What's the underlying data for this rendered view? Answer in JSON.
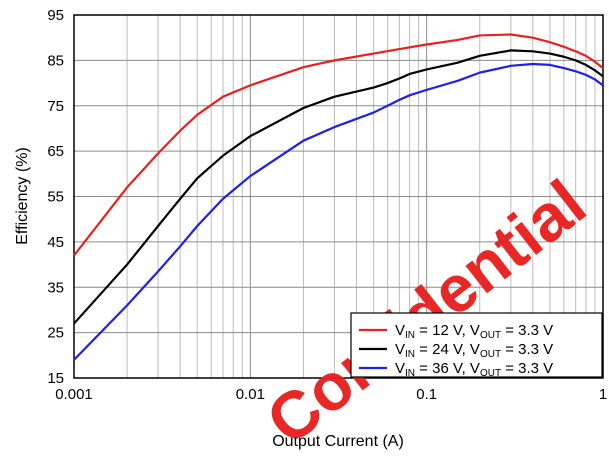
{
  "chart_data": {
    "type": "line",
    "xlabel": "Output Current (A)",
    "ylabel": "Efficiency (%)",
    "x_scale": "log",
    "xlim": [
      0.001,
      1
    ],
    "ylim": [
      15,
      95
    ],
    "x_ticks": [
      {
        "value": 0.001,
        "label": "0.001"
      },
      {
        "value": 0.01,
        "label": "0.01"
      },
      {
        "value": 0.1,
        "label": "0.1"
      },
      {
        "value": 1,
        "label": "1"
      }
    ],
    "y_ticks": [
      {
        "value": 15,
        "label": "15"
      },
      {
        "value": 25,
        "label": "25"
      },
      {
        "value": 35,
        "label": "35"
      },
      {
        "value": 45,
        "label": "45"
      },
      {
        "value": 55,
        "label": "55"
      },
      {
        "value": 65,
        "label": "65"
      },
      {
        "value": 75,
        "label": "75"
      },
      {
        "value": 85,
        "label": "85"
      },
      {
        "value": 95,
        "label": "95"
      }
    ],
    "grid": true,
    "legend_position": "bottom-right",
    "series": [
      {
        "name": "VIN = 12 V, VOUT = 3.3 V",
        "legend": {
          "p1": "V",
          "s1": "IN",
          "p2": " = 12 V, V",
          "s2": "OUT",
          "p3": " = 3.3 V"
        },
        "color": "#e8201f",
        "points": [
          [
            0.001,
            42
          ],
          [
            0.002,
            57
          ],
          [
            0.003,
            64.5
          ],
          [
            0.004,
            69.5
          ],
          [
            0.005,
            73
          ],
          [
            0.007,
            77
          ],
          [
            0.01,
            79.5
          ],
          [
            0.02,
            83.5
          ],
          [
            0.03,
            85
          ],
          [
            0.05,
            86.5
          ],
          [
            0.07,
            87.5
          ],
          [
            0.1,
            88.5
          ],
          [
            0.15,
            89.5
          ],
          [
            0.2,
            90.5
          ],
          [
            0.3,
            90.7
          ],
          [
            0.4,
            90
          ],
          [
            0.5,
            89
          ],
          [
            0.6,
            88
          ],
          [
            0.7,
            87
          ],
          [
            0.8,
            86
          ],
          [
            0.9,
            84.7
          ],
          [
            1,
            83.3
          ]
        ]
      },
      {
        "name": "VIN = 24 V, VOUT = 3.3 V",
        "legend": {
          "p1": "V",
          "s1": "IN",
          "p2": " = 24 V, V",
          "s2": "OUT",
          "p3": " = 3.3 V"
        },
        "color": "#000000",
        "points": [
          [
            0.001,
            27
          ],
          [
            0.002,
            40
          ],
          [
            0.003,
            48.5
          ],
          [
            0.004,
            54.5
          ],
          [
            0.005,
            59
          ],
          [
            0.007,
            64
          ],
          [
            0.01,
            68.3
          ],
          [
            0.02,
            74.5
          ],
          [
            0.03,
            77
          ],
          [
            0.05,
            79
          ],
          [
            0.06,
            80
          ],
          [
            0.07,
            81
          ],
          [
            0.08,
            82
          ],
          [
            0.1,
            83
          ],
          [
            0.15,
            84.5
          ],
          [
            0.2,
            86
          ],
          [
            0.3,
            87.2
          ],
          [
            0.4,
            87
          ],
          [
            0.5,
            86.5
          ],
          [
            0.6,
            85.8
          ],
          [
            0.7,
            85
          ],
          [
            0.8,
            84
          ],
          [
            0.9,
            82.8
          ],
          [
            1,
            81.5
          ]
        ]
      },
      {
        "name": "VIN = 36 V, VOUT = 3.3 V",
        "legend": {
          "p1": "V",
          "s1": "IN",
          "p2": " = 36 V, V",
          "s2": "OUT",
          "p3": " = 3.3 V"
        },
        "color": "#1f1fe8",
        "points": [
          [
            0.001,
            19
          ],
          [
            0.002,
            31
          ],
          [
            0.003,
            38.5
          ],
          [
            0.004,
            44
          ],
          [
            0.005,
            48.5
          ],
          [
            0.007,
            54.5
          ],
          [
            0.01,
            59.5
          ],
          [
            0.02,
            67.3
          ],
          [
            0.03,
            70.3
          ],
          [
            0.05,
            73.5
          ],
          [
            0.06,
            75
          ],
          [
            0.07,
            76.3
          ],
          [
            0.08,
            77.3
          ],
          [
            0.1,
            78.5
          ],
          [
            0.15,
            80.5
          ],
          [
            0.2,
            82.3
          ],
          [
            0.3,
            83.8
          ],
          [
            0.4,
            84.2
          ],
          [
            0.5,
            84
          ],
          [
            0.6,
            83.3
          ],
          [
            0.7,
            82.6
          ],
          [
            0.8,
            81.8
          ],
          [
            0.9,
            80.8
          ],
          [
            1,
            79.5
          ]
        ]
      }
    ]
  },
  "watermark": {
    "text": "Confidential",
    "color": "#e8201f"
  }
}
